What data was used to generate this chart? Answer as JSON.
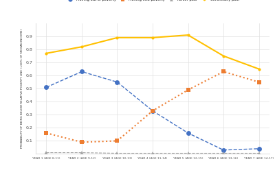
{
  "x_labels": [
    "YEAR 1 (AGE 8-11)",
    "YEAR 2 (AGE 9-12)",
    "YEAR 3 (AGE 10-13)",
    "YEAR 4 (AGE 11-14)",
    "YEAR 5 (AGE 12-15)",
    "YEAR 6 (AGE 13-16)",
    "YEAR 7 (AGE 14-17)"
  ],
  "moving_out": [
    0.51,
    0.63,
    0.55,
    0.33,
    0.16,
    0.03,
    0.04
  ],
  "moving_into": [
    0.16,
    0.09,
    0.1,
    0.33,
    0.49,
    0.63,
    0.55
  ],
  "never_poor": [
    0.01,
    0.01,
    0.005,
    0.005,
    0.005,
    0.005,
    0.005
  ],
  "chronically_poor": [
    0.77,
    0.82,
    0.89,
    0.89,
    0.91,
    0.75,
    0.65
  ],
  "colors": {
    "moving_out": "#4472C4",
    "moving_into": "#ED7D31",
    "never_poor": "#A5A5A5",
    "chronically_poor": "#FFC000"
  },
  "ylabel": "PROBABILITY OF BEING BELOW RELATIVE POVERTY LINE (<60% OF MEDIAN INCOME)",
  "ylim": [
    0,
    1
  ],
  "yticks": [
    0.1,
    0.2,
    0.3,
    0.4,
    0.5,
    0.6,
    0.7,
    0.8,
    0.9
  ],
  "background_color": "#ffffff",
  "grid_color": "#E0E0E0"
}
